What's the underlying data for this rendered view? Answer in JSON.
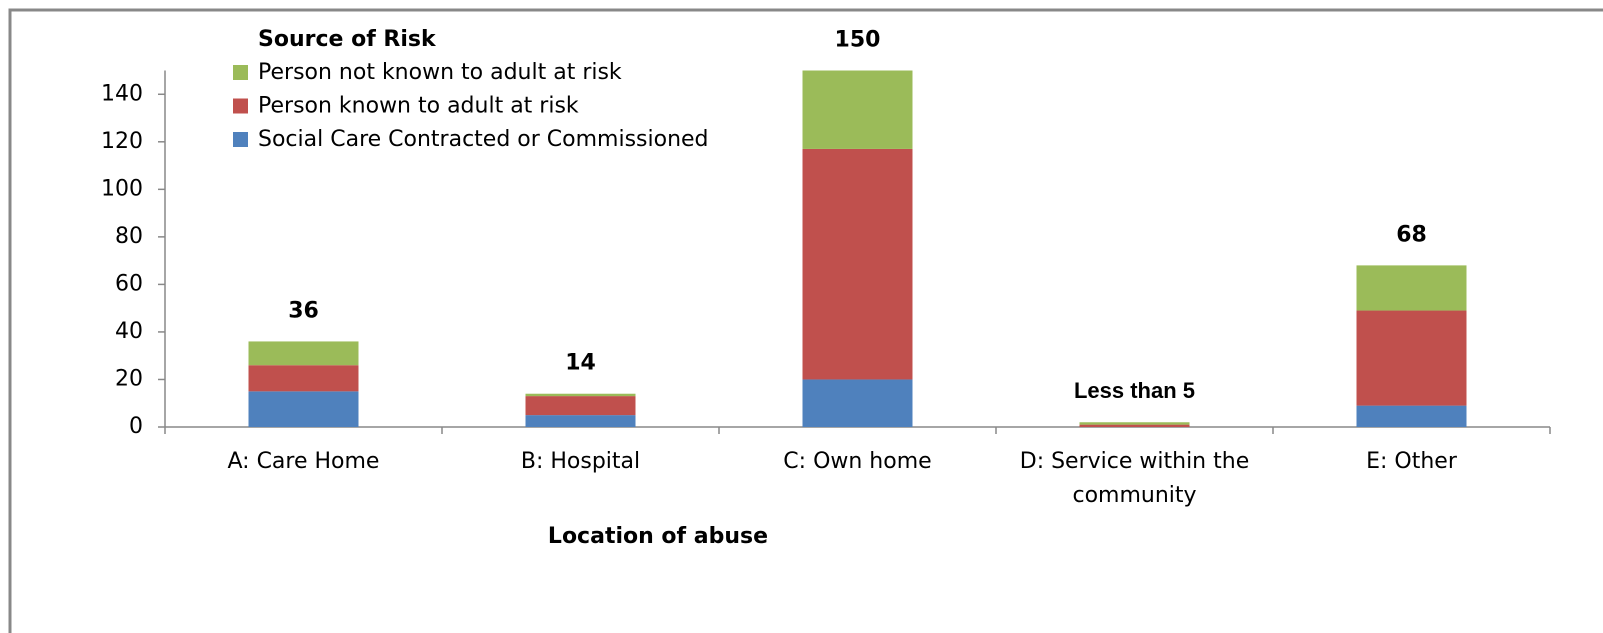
{
  "chart_data": {
    "type": "stacked_bar",
    "x_label": "Location of abuse",
    "legend_title": "Source of Risk",
    "legend_position": "top-left",
    "categories": [
      "A: Care Home",
      "B: Hospital",
      "C: Own home",
      "D: Service within the community",
      "E: Other"
    ],
    "series": [
      {
        "name": "Social Care Contracted or Commissioned",
        "color": "#4f81bd",
        "values": [
          15,
          5,
          20,
          0,
          9
        ]
      },
      {
        "name": "Person known to adult at risk",
        "color": "#c0504d",
        "values": [
          11,
          8,
          97,
          1,
          40
        ]
      },
      {
        "name": "Person not known to adult at risk",
        "color": "#9bbb59",
        "values": [
          10,
          1,
          33,
          1,
          19
        ]
      }
    ],
    "totals": {
      "values": [
        36,
        14,
        150,
        null,
        68
      ],
      "value_labels": [
        "36",
        "14",
        "150",
        "Less than 5",
        "68"
      ]
    },
    "ylim": [
      0,
      150
    ],
    "yticks": [
      0,
      20,
      40,
      60,
      80,
      100,
      120,
      140
    ]
  }
}
